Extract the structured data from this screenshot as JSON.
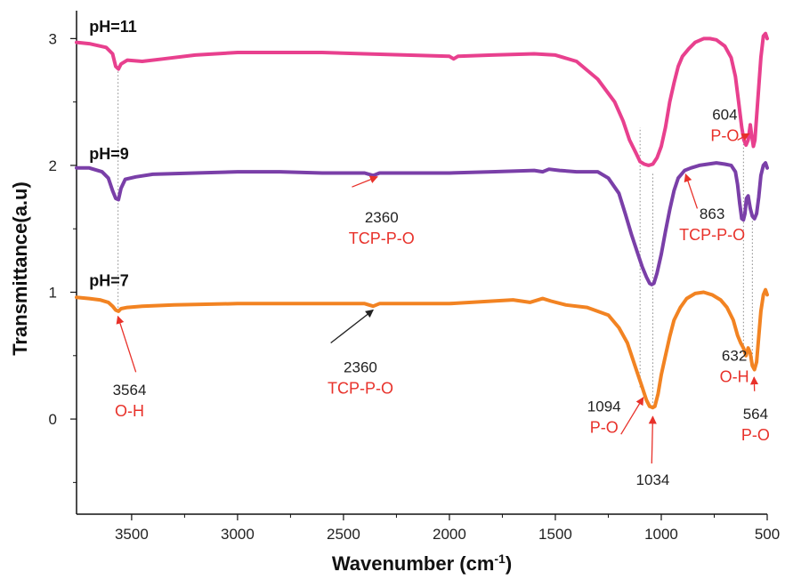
{
  "chart_data": {
    "type": "line",
    "xlabel": "Wavenumber (cm",
    "xlabel_sup": "-1",
    "xlabel_close": ")",
    "ylabel": "Transmittance(a.u)",
    "xlim": [
      3760,
      500
    ],
    "ylim": [
      -0.75,
      3.22
    ],
    "x_ticks": [
      3500,
      3000,
      2500,
      2000,
      1500,
      1000,
      500
    ],
    "y_ticks": [
      0,
      1,
      2,
      3
    ],
    "x_tick_labels": [
      "3500",
      "3000",
      "2500",
      "2000",
      "1500",
      "1000",
      "500"
    ],
    "y_tick_labels": [
      "0",
      "1",
      "2",
      "3"
    ],
    "series": [
      {
        "name": "pH=11",
        "color": "#e8408e",
        "label_at": [
          3700,
          3.05
        ],
        "points": [
          [
            3760,
            2.97
          ],
          [
            3700,
            2.96
          ],
          [
            3620,
            2.93
          ],
          [
            3590,
            2.88
          ],
          [
            3575,
            2.78
          ],
          [
            3562,
            2.76
          ],
          [
            3550,
            2.8
          ],
          [
            3520,
            2.83
          ],
          [
            3450,
            2.82
          ],
          [
            3350,
            2.84
          ],
          [
            3200,
            2.87
          ],
          [
            3000,
            2.89
          ],
          [
            2800,
            2.89
          ],
          [
            2600,
            2.89
          ],
          [
            2400,
            2.88
          ],
          [
            2200,
            2.87
          ],
          [
            2000,
            2.86
          ],
          [
            1980,
            2.84
          ],
          [
            1960,
            2.86
          ],
          [
            1800,
            2.87
          ],
          [
            1600,
            2.88
          ],
          [
            1500,
            2.87
          ],
          [
            1400,
            2.82
          ],
          [
            1300,
            2.68
          ],
          [
            1220,
            2.5
          ],
          [
            1180,
            2.35
          ],
          [
            1150,
            2.2
          ],
          [
            1120,
            2.1
          ],
          [
            1100,
            2.03
          ],
          [
            1080,
            2.01
          ],
          [
            1060,
            2.0
          ],
          [
            1040,
            2.01
          ],
          [
            1020,
            2.06
          ],
          [
            1000,
            2.15
          ],
          [
            980,
            2.3
          ],
          [
            960,
            2.5
          ],
          [
            940,
            2.65
          ],
          [
            920,
            2.78
          ],
          [
            900,
            2.86
          ],
          [
            870,
            2.92
          ],
          [
            840,
            2.97
          ],
          [
            800,
            3.0
          ],
          [
            770,
            3.0
          ],
          [
            740,
            2.99
          ],
          [
            700,
            2.94
          ],
          [
            670,
            2.85
          ],
          [
            650,
            2.7
          ],
          [
            635,
            2.5
          ],
          [
            620,
            2.3
          ],
          [
            610,
            2.2
          ],
          [
            600,
            2.16
          ],
          [
            590,
            2.2
          ],
          [
            580,
            2.32
          ],
          [
            572,
            2.22
          ],
          [
            565,
            2.15
          ],
          [
            558,
            2.2
          ],
          [
            545,
            2.5
          ],
          [
            530,
            2.85
          ],
          [
            518,
            3.02
          ],
          [
            508,
            3.04
          ],
          [
            500,
            3.0
          ]
        ]
      },
      {
        "name": "pH=9",
        "color": "#7a3fa8",
        "label_at": [
          3700,
          2.05
        ],
        "points": [
          [
            3760,
            1.98
          ],
          [
            3700,
            1.98
          ],
          [
            3640,
            1.95
          ],
          [
            3610,
            1.9
          ],
          [
            3590,
            1.8
          ],
          [
            3575,
            1.74
          ],
          [
            3562,
            1.73
          ],
          [
            3550,
            1.82
          ],
          [
            3530,
            1.89
          ],
          [
            3480,
            1.91
          ],
          [
            3400,
            1.93
          ],
          [
            3200,
            1.94
          ],
          [
            3000,
            1.95
          ],
          [
            2800,
            1.95
          ],
          [
            2600,
            1.94
          ],
          [
            2400,
            1.94
          ],
          [
            2360,
            1.92
          ],
          [
            2330,
            1.94
          ],
          [
            2200,
            1.94
          ],
          [
            2000,
            1.94
          ],
          [
            1800,
            1.95
          ],
          [
            1600,
            1.96
          ],
          [
            1560,
            1.95
          ],
          [
            1530,
            1.97
          ],
          [
            1480,
            1.96
          ],
          [
            1400,
            1.95
          ],
          [
            1300,
            1.95
          ],
          [
            1250,
            1.9
          ],
          [
            1200,
            1.78
          ],
          [
            1170,
            1.62
          ],
          [
            1140,
            1.45
          ],
          [
            1110,
            1.3
          ],
          [
            1090,
            1.2
          ],
          [
            1070,
            1.12
          ],
          [
            1055,
            1.07
          ],
          [
            1045,
            1.06
          ],
          [
            1035,
            1.07
          ],
          [
            1020,
            1.15
          ],
          [
            1000,
            1.3
          ],
          [
            980,
            1.48
          ],
          [
            960,
            1.65
          ],
          [
            940,
            1.8
          ],
          [
            920,
            1.9
          ],
          [
            890,
            1.96
          ],
          [
            860,
            1.98
          ],
          [
            820,
            2.0
          ],
          [
            780,
            2.01
          ],
          [
            740,
            2.02
          ],
          [
            700,
            2.01
          ],
          [
            670,
            2.0
          ],
          [
            650,
            1.95
          ],
          [
            640,
            1.85
          ],
          [
            630,
            1.7
          ],
          [
            620,
            1.58
          ],
          [
            612,
            1.57
          ],
          [
            605,
            1.62
          ],
          [
            598,
            1.74
          ],
          [
            590,
            1.76
          ],
          [
            580,
            1.66
          ],
          [
            570,
            1.6
          ],
          [
            560,
            1.58
          ],
          [
            550,
            1.62
          ],
          [
            540,
            1.75
          ],
          [
            530,
            1.92
          ],
          [
            518,
            2.0
          ],
          [
            508,
            2.02
          ],
          [
            500,
            1.98
          ]
        ]
      },
      {
        "name": "pH=7",
        "color": "#f28322",
        "label_at": [
          3700,
          1.05
        ],
        "points": [
          [
            3760,
            0.96
          ],
          [
            3700,
            0.95
          ],
          [
            3650,
            0.94
          ],
          [
            3610,
            0.92
          ],
          [
            3590,
            0.89
          ],
          [
            3575,
            0.86
          ],
          [
            3562,
            0.85
          ],
          [
            3550,
            0.87
          ],
          [
            3520,
            0.88
          ],
          [
            3450,
            0.89
          ],
          [
            3300,
            0.9
          ],
          [
            3000,
            0.91
          ],
          [
            2800,
            0.91
          ],
          [
            2600,
            0.91
          ],
          [
            2400,
            0.91
          ],
          [
            2360,
            0.89
          ],
          [
            2330,
            0.91
          ],
          [
            2200,
            0.91
          ],
          [
            2000,
            0.91
          ],
          [
            1800,
            0.93
          ],
          [
            1700,
            0.94
          ],
          [
            1620,
            0.92
          ],
          [
            1560,
            0.95
          ],
          [
            1520,
            0.93
          ],
          [
            1450,
            0.9
          ],
          [
            1350,
            0.88
          ],
          [
            1250,
            0.82
          ],
          [
            1200,
            0.72
          ],
          [
            1160,
            0.6
          ],
          [
            1130,
            0.45
          ],
          [
            1110,
            0.35
          ],
          [
            1090,
            0.25
          ],
          [
            1070,
            0.15
          ],
          [
            1055,
            0.1
          ],
          [
            1040,
            0.09
          ],
          [
            1030,
            0.1
          ],
          [
            1015,
            0.2
          ],
          [
            1000,
            0.35
          ],
          [
            980,
            0.5
          ],
          [
            960,
            0.65
          ],
          [
            940,
            0.78
          ],
          [
            910,
            0.88
          ],
          [
            880,
            0.95
          ],
          [
            840,
            0.99
          ],
          [
            800,
            1.0
          ],
          [
            760,
            0.98
          ],
          [
            720,
            0.94
          ],
          [
            690,
            0.88
          ],
          [
            660,
            0.78
          ],
          [
            640,
            0.66
          ],
          [
            625,
            0.6
          ],
          [
            612,
            0.56
          ],
          [
            600,
            0.5
          ],
          [
            590,
            0.56
          ],
          [
            580,
            0.52
          ],
          [
            570,
            0.42
          ],
          [
            560,
            0.39
          ],
          [
            550,
            0.45
          ],
          [
            540,
            0.65
          ],
          [
            530,
            0.85
          ],
          [
            518,
            0.98
          ],
          [
            508,
            1.02
          ],
          [
            500,
            0.98
          ]
        ]
      }
    ],
    "annotations": [
      {
        "number": "604",
        "label": "P-O",
        "at": [
          700,
          2.36
        ],
        "arrow_from": [
          640,
          2.2
        ],
        "arrow_to": [
          585,
          2.25
        ],
        "arrow_color": "#e8312a"
      },
      {
        "number": "2360",
        "label": "TCP-P-O",
        "at": [
          2320,
          1.55
        ],
        "arrow_from": [
          2460,
          1.83
        ],
        "arrow_to": [
          2340,
          1.91
        ],
        "arrow_color": "#e8312a"
      },
      {
        "number": "863",
        "label": "TCP-P-O",
        "at": [
          760,
          1.58
        ],
        "arrow_from": [
          830,
          1.66
        ],
        "arrow_to": [
          885,
          1.93
        ],
        "arrow_color": "#e8312a"
      },
      {
        "number": "2360",
        "label": "TCP-P-O",
        "at": [
          2420,
          0.37
        ],
        "arrow_from": [
          2560,
          0.6
        ],
        "arrow_to": [
          2360,
          0.86
        ],
        "arrow_color": "#222222"
      },
      {
        "number": "3564",
        "label": "O-H",
        "at": [
          3510,
          0.19
        ],
        "arrow_from": [
          3480,
          0.37
        ],
        "arrow_to": [
          3565,
          0.81
        ],
        "arrow_color": "#e8312a"
      },
      {
        "number": "632",
        "label": "O-H",
        "at": [
          655,
          0.46
        ],
        "arrow_from": [
          610,
          0.6
        ],
        "arrow_to": [
          600,
          0.7
        ],
        "arrow_color": "#e8312a",
        "hide_arrow": true
      },
      {
        "number": "1094",
        "label": "P-O",
        "at": [
          1270,
          0.06
        ],
        "arrow_from": [
          1190,
          -0.12
        ],
        "arrow_to": [
          1085,
          0.17
        ],
        "arrow_color": "#e8312a"
      },
      {
        "number": "1034",
        "label": "",
        "at": [
          1040,
          -0.52
        ],
        "arrow_from": [
          1045,
          -0.35
        ],
        "arrow_to": [
          1040,
          0.02
        ],
        "arrow_color": "#e8312a"
      },
      {
        "number": "564",
        "label": "P-O",
        "at": [
          555,
          0.0
        ],
        "arrow_from": [
          560,
          0.22
        ],
        "arrow_to": [
          562,
          0.33
        ],
        "arrow_color": "#e8312a"
      }
    ],
    "reference_lines": [
      {
        "x": 3564,
        "y_from": 0.85,
        "y_to": 2.78
      },
      {
        "x": 1100,
        "y_from": 0.25,
        "y_to": 2.3
      },
      {
        "x": 1040,
        "y_from": 0.1,
        "y_to": 1.95
      },
      {
        "x": 612,
        "y_from": 0.56,
        "y_to": 2.22
      },
      {
        "x": 570,
        "y_from": 0.4,
        "y_to": 1.6
      }
    ],
    "grid": false,
    "legend": "none"
  }
}
